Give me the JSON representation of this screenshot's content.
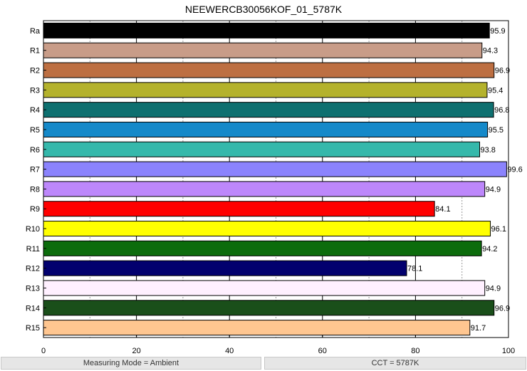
{
  "chart_data": {
    "type": "bar",
    "orientation": "horizontal",
    "title": "NEEWERCB30056KOF_01_5787K",
    "xlabel": "",
    "ylabel": "",
    "xlim": [
      0,
      100
    ],
    "xticks": [
      0,
      20,
      40,
      60,
      80,
      100
    ],
    "grid": "vertical, dashed minor lines every 10",
    "categories": [
      "Ra",
      "R1",
      "R2",
      "R3",
      "R4",
      "R5",
      "R6",
      "R7",
      "R8",
      "R9",
      "R10",
      "R11",
      "R12",
      "R13",
      "R14",
      "R15"
    ],
    "values": [
      95.9,
      94.3,
      96.9,
      95.4,
      96.8,
      95.5,
      93.8,
      99.6,
      94.9,
      84.1,
      96.1,
      94.2,
      78.1,
      94.9,
      96.9,
      91.7
    ],
    "value_labels": [
      "95.9",
      "94.3",
      "96.9",
      "95.4",
      "96.8",
      "95.5",
      "93.8",
      "99.6",
      "94.9",
      "84.1",
      "96.1",
      "94.2",
      "78.1",
      "94.9",
      "96.9",
      "91.7"
    ],
    "colors": [
      "#000000",
      "#c89c88",
      "#bd6f42",
      "#b4b22c",
      "#0e7070",
      "#1589c9",
      "#35b8ab",
      "#8b83fd",
      "#bd87fb",
      "#ff0000",
      "#ffff00",
      "#0c6c0c",
      "#02006e",
      "#fff0ff",
      "#1a4f1a",
      "#ffc690"
    ]
  },
  "footer": {
    "measuring_mode": "Measuring Mode = Ambient",
    "cct": "CCT = 5787K"
  }
}
